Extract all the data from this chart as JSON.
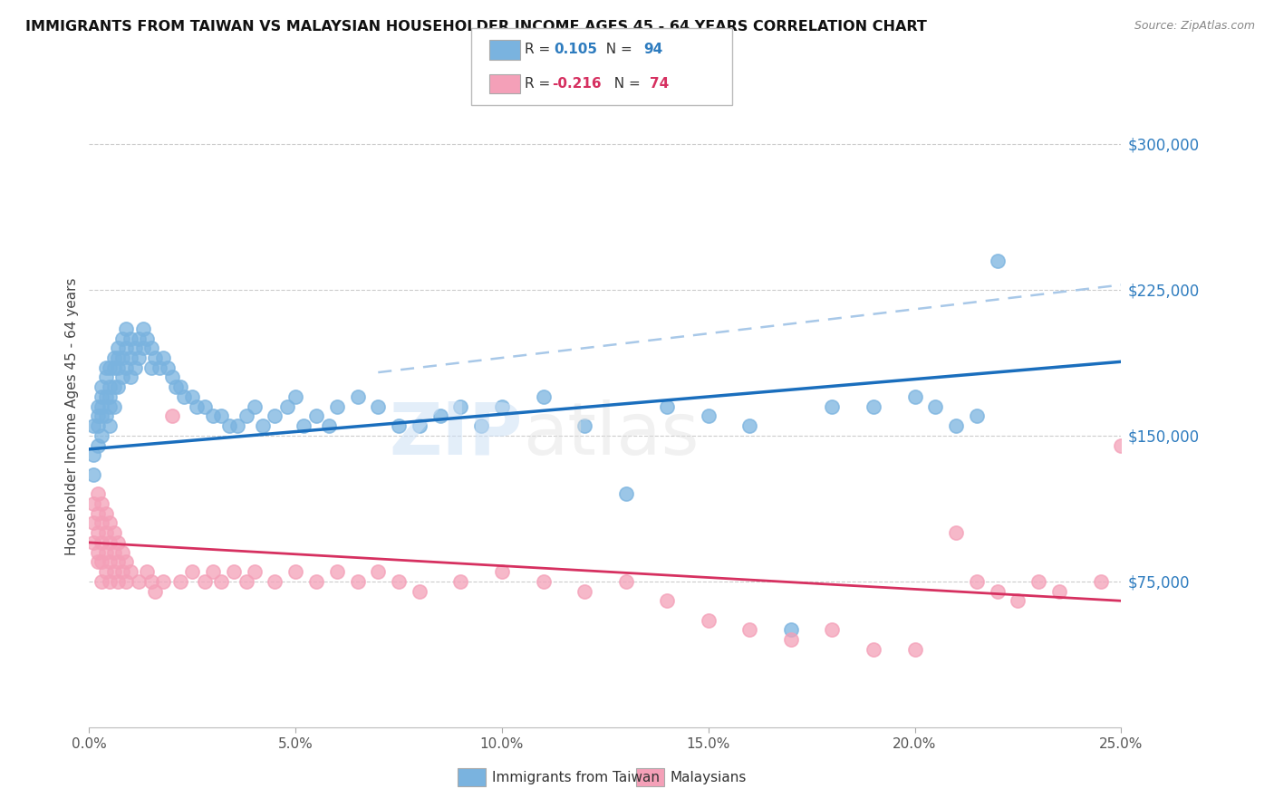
{
  "title": "IMMIGRANTS FROM TAIWAN VS MALAYSIAN HOUSEHOLDER INCOME AGES 45 - 64 YEARS CORRELATION CHART",
  "source": "Source: ZipAtlas.com",
  "ylabel": "Householder Income Ages 45 - 64 years",
  "xlabel_ticks": [
    "0.0%",
    "5.0%",
    "10.0%",
    "15.0%",
    "20.0%",
    "25.0%"
  ],
  "xlabel_values": [
    0.0,
    0.05,
    0.1,
    0.15,
    0.2,
    0.25
  ],
  "ytick_labels": [
    "$75,000",
    "$150,000",
    "$225,000",
    "$300,000"
  ],
  "ytick_values": [
    75000,
    150000,
    225000,
    300000
  ],
  "xlim": [
    0.0,
    0.25
  ],
  "ylim": [
    0,
    320000
  ],
  "taiwan_color": "#7ab3df",
  "malaysia_color": "#f4a0b8",
  "taiwan_line_color": "#1a6ebd",
  "malaysia_line_color": "#d63060",
  "taiwan_dash_color": "#a8c8e8",
  "taiwan_R": 0.105,
  "taiwan_N": 94,
  "malaysia_R": -0.216,
  "malaysia_N": 74,
  "legend_taiwan": "Immigrants from Taiwan",
  "legend_malaysia": "Malaysians",
  "tw_intercept": 143000,
  "tw_slope": 180000,
  "my_intercept": 95000,
  "my_slope": -120000,
  "tw_x": [
    0.001,
    0.001,
    0.001,
    0.002,
    0.002,
    0.002,
    0.002,
    0.003,
    0.003,
    0.003,
    0.003,
    0.003,
    0.004,
    0.004,
    0.004,
    0.004,
    0.005,
    0.005,
    0.005,
    0.005,
    0.005,
    0.006,
    0.006,
    0.006,
    0.006,
    0.007,
    0.007,
    0.007,
    0.007,
    0.008,
    0.008,
    0.008,
    0.009,
    0.009,
    0.009,
    0.01,
    0.01,
    0.01,
    0.011,
    0.011,
    0.012,
    0.012,
    0.013,
    0.013,
    0.014,
    0.015,
    0.015,
    0.016,
    0.017,
    0.018,
    0.019,
    0.02,
    0.021,
    0.022,
    0.023,
    0.025,
    0.026,
    0.028,
    0.03,
    0.032,
    0.034,
    0.036,
    0.038,
    0.04,
    0.042,
    0.045,
    0.048,
    0.05,
    0.052,
    0.055,
    0.058,
    0.06,
    0.065,
    0.07,
    0.075,
    0.08,
    0.085,
    0.09,
    0.095,
    0.1,
    0.11,
    0.12,
    0.13,
    0.14,
    0.15,
    0.16,
    0.17,
    0.18,
    0.19,
    0.2,
    0.205,
    0.21,
    0.215,
    0.22
  ],
  "tw_y": [
    155000,
    140000,
    130000,
    165000,
    160000,
    155000,
    145000,
    175000,
    170000,
    165000,
    160000,
    150000,
    185000,
    180000,
    170000,
    160000,
    185000,
    175000,
    170000,
    165000,
    155000,
    190000,
    185000,
    175000,
    165000,
    195000,
    190000,
    185000,
    175000,
    200000,
    190000,
    180000,
    205000,
    195000,
    185000,
    200000,
    190000,
    180000,
    195000,
    185000,
    200000,
    190000,
    205000,
    195000,
    200000,
    195000,
    185000,
    190000,
    185000,
    190000,
    185000,
    180000,
    175000,
    175000,
    170000,
    170000,
    165000,
    165000,
    160000,
    160000,
    155000,
    155000,
    160000,
    165000,
    155000,
    160000,
    165000,
    170000,
    155000,
    160000,
    155000,
    165000,
    170000,
    165000,
    155000,
    155000,
    160000,
    165000,
    155000,
    165000,
    170000,
    155000,
    120000,
    165000,
    160000,
    155000,
    50000,
    165000,
    165000,
    170000,
    165000,
    155000,
    160000,
    240000
  ],
  "my_x": [
    0.001,
    0.001,
    0.001,
    0.002,
    0.002,
    0.002,
    0.002,
    0.002,
    0.003,
    0.003,
    0.003,
    0.003,
    0.003,
    0.004,
    0.004,
    0.004,
    0.004,
    0.005,
    0.005,
    0.005,
    0.005,
    0.006,
    0.006,
    0.006,
    0.007,
    0.007,
    0.007,
    0.008,
    0.008,
    0.009,
    0.009,
    0.01,
    0.012,
    0.014,
    0.015,
    0.016,
    0.018,
    0.02,
    0.022,
    0.025,
    0.028,
    0.03,
    0.032,
    0.035,
    0.038,
    0.04,
    0.045,
    0.05,
    0.055,
    0.06,
    0.065,
    0.07,
    0.075,
    0.08,
    0.09,
    0.1,
    0.11,
    0.12,
    0.13,
    0.14,
    0.15,
    0.16,
    0.17,
    0.18,
    0.19,
    0.2,
    0.21,
    0.215,
    0.22,
    0.225,
    0.23,
    0.235,
    0.245,
    0.25
  ],
  "my_y": [
    115000,
    105000,
    95000,
    120000,
    110000,
    100000,
    90000,
    85000,
    115000,
    105000,
    95000,
    85000,
    75000,
    110000,
    100000,
    90000,
    80000,
    105000,
    95000,
    85000,
    75000,
    100000,
    90000,
    80000,
    95000,
    85000,
    75000,
    90000,
    80000,
    85000,
    75000,
    80000,
    75000,
    80000,
    75000,
    70000,
    75000,
    160000,
    75000,
    80000,
    75000,
    80000,
    75000,
    80000,
    75000,
    80000,
    75000,
    80000,
    75000,
    80000,
    75000,
    80000,
    75000,
    70000,
    75000,
    80000,
    75000,
    70000,
    75000,
    65000,
    55000,
    50000,
    45000,
    50000,
    40000,
    40000,
    100000,
    75000,
    70000,
    65000,
    75000,
    70000,
    75000,
    145000
  ]
}
